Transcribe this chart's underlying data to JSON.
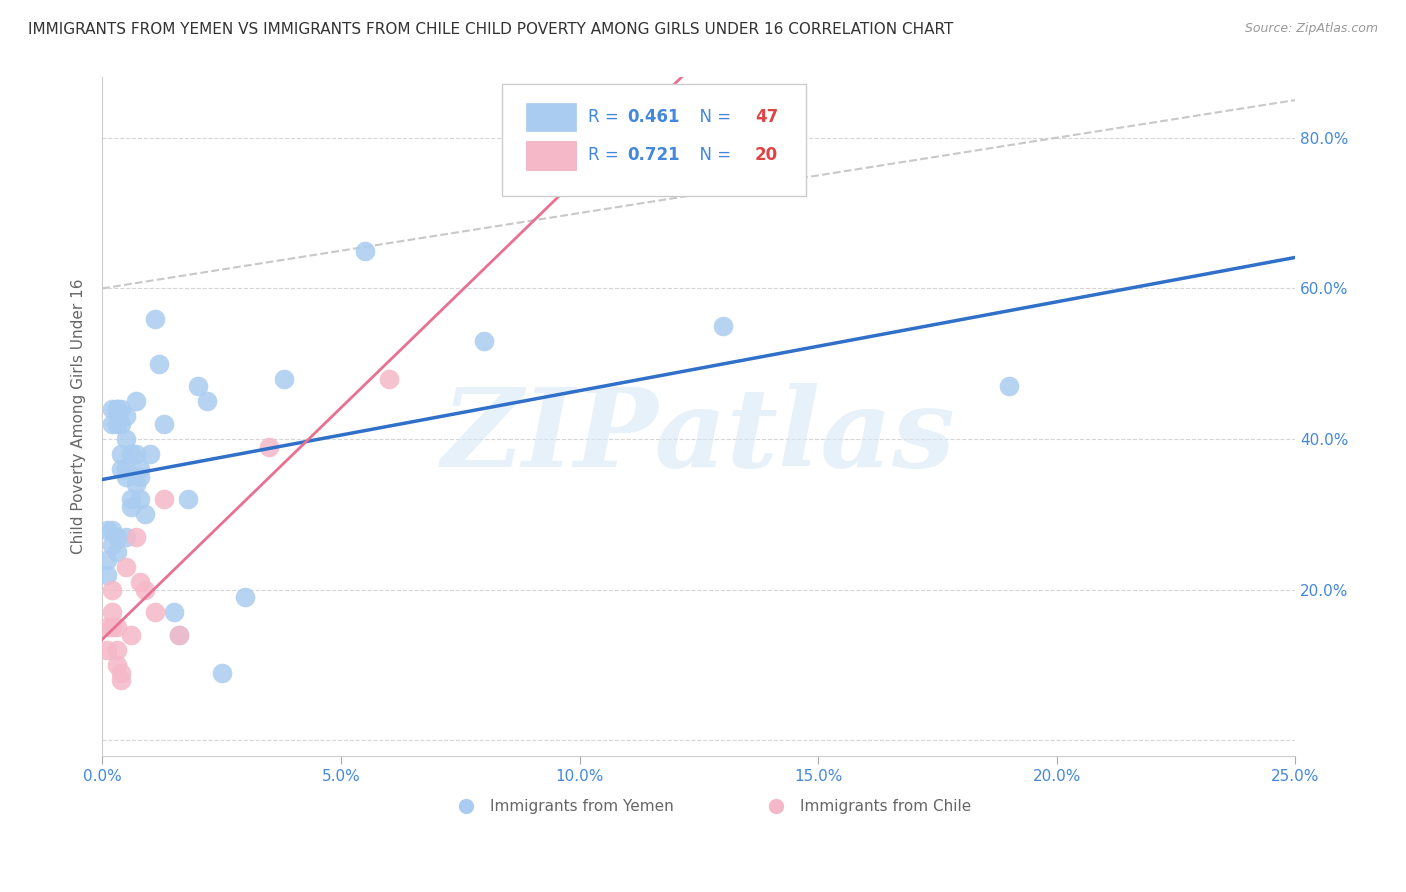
{
  "title": "IMMIGRANTS FROM YEMEN VS IMMIGRANTS FROM CHILE CHILD POVERTY AMONG GIRLS UNDER 16 CORRELATION CHART",
  "source": "Source: ZipAtlas.com",
  "ylabel": "Child Poverty Among Girls Under 16",
  "xlim": [
    0,
    0.25
  ],
  "ylim": [
    -0.02,
    0.88
  ],
  "x_tick_values": [
    0.0,
    0.05,
    0.1,
    0.15,
    0.2,
    0.25
  ],
  "x_tick_labels": [
    "0.0%",
    "5.0%",
    "10.0%",
    "15.0%",
    "20.0%",
    "25.0%"
  ],
  "y_tick_values": [
    0.0,
    0.2,
    0.4,
    0.6,
    0.8
  ],
  "y_tick_labels": [
    "",
    "20.0%",
    "40.0%",
    "60.0%",
    "80.0%"
  ],
  "legend1_R": "0.461",
  "legend1_N": "47",
  "legend2_R": "0.721",
  "legend2_N": "20",
  "watermark": "ZIPatlas",
  "yemen_color": "#aaccf0",
  "chile_color": "#f5b8c8",
  "trend_yemen_color": "#3070c8",
  "trend_chile_color": "#e87090",
  "trend_chile_dash_color": "#e8b0b8",
  "background_color": "#ffffff",
  "grid_color": "#cccccc",
  "title_color": "#333333",
  "axis_blue": "#4488dd",
  "axis_red": "#dd4444",
  "label_color": "#666666",
  "yemen_scatter_x": [
    0.001,
    0.001,
    0.001,
    0.002,
    0.002,
    0.002,
    0.002,
    0.003,
    0.003,
    0.003,
    0.003,
    0.003,
    0.004,
    0.004,
    0.004,
    0.004,
    0.005,
    0.005,
    0.005,
    0.005,
    0.005,
    0.006,
    0.006,
    0.006,
    0.007,
    0.007,
    0.007,
    0.008,
    0.008,
    0.008,
    0.009,
    0.01,
    0.011,
    0.012,
    0.013,
    0.015,
    0.016,
    0.018,
    0.02,
    0.022,
    0.025,
    0.03,
    0.038,
    0.055,
    0.08,
    0.13,
    0.19
  ],
  "yemen_scatter_y": [
    0.24,
    0.28,
    0.22,
    0.44,
    0.42,
    0.28,
    0.26,
    0.44,
    0.25,
    0.27,
    0.44,
    0.42,
    0.44,
    0.42,
    0.38,
    0.36,
    0.43,
    0.4,
    0.36,
    0.35,
    0.27,
    0.38,
    0.32,
    0.31,
    0.45,
    0.38,
    0.34,
    0.36,
    0.32,
    0.35,
    0.3,
    0.38,
    0.56,
    0.5,
    0.42,
    0.17,
    0.14,
    0.32,
    0.47,
    0.45,
    0.09,
    0.19,
    0.48,
    0.65,
    0.53,
    0.55,
    0.47
  ],
  "chile_scatter_x": [
    0.001,
    0.001,
    0.002,
    0.002,
    0.002,
    0.003,
    0.003,
    0.003,
    0.004,
    0.004,
    0.005,
    0.006,
    0.007,
    0.008,
    0.009,
    0.011,
    0.013,
    0.016,
    0.035,
    0.06
  ],
  "chile_scatter_y": [
    0.15,
    0.12,
    0.2,
    0.17,
    0.15,
    0.15,
    0.12,
    0.1,
    0.09,
    0.08,
    0.23,
    0.14,
    0.27,
    0.21,
    0.2,
    0.17,
    0.32,
    0.14,
    0.39,
    0.48
  ],
  "yemen_trend_intercept": 0.295,
  "yemen_trend_slope": 1.35,
  "chile_trend_intercept": 0.075,
  "chile_trend_slope": 6.5
}
